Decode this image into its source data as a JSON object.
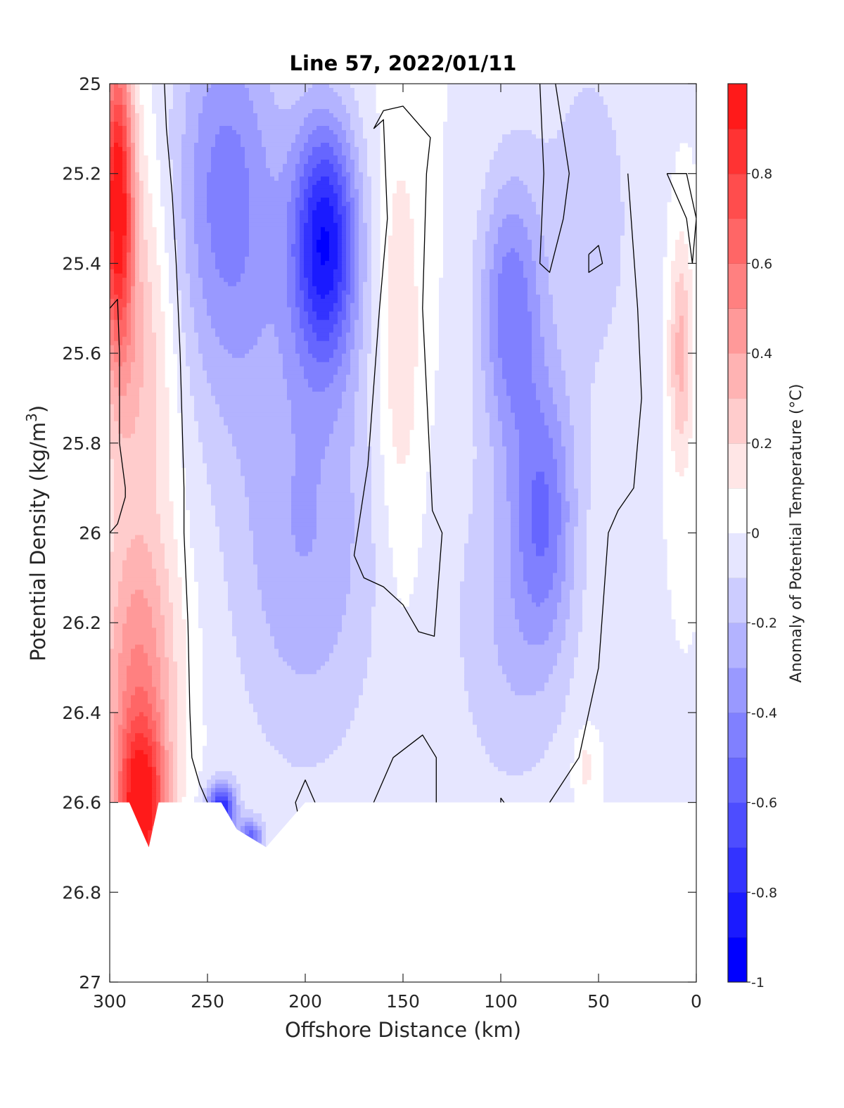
{
  "chart_data": {
    "type": "contourf",
    "title": "Line 57, 2022/01/11",
    "xlabel": "Offshore Distance (km)",
    "ylabel_main": "Potential Density (kg/m",
    "ylabel_sup": "3",
    "ylabel_close": ")",
    "xlim": [
      300,
      0
    ],
    "ylim": [
      25,
      27
    ],
    "y_reversed": true,
    "xticks": [
      300,
      250,
      200,
      150,
      100,
      50,
      0
    ],
    "xtick_labels": [
      "300",
      "250",
      "200",
      "150",
      "100",
      "50",
      "0"
    ],
    "yticks": [
      25,
      25.2,
      25.4,
      25.6,
      25.8,
      26,
      26.2,
      26.4,
      26.6,
      26.8,
      27
    ],
    "ytick_labels": [
      "25",
      "25.2",
      "25.4",
      "25.6",
      "25.8",
      "26",
      "26.2",
      "26.4",
      "26.6",
      "26.8",
      "27"
    ],
    "colorbar": {
      "label": "Anomaly of Potential Temperature (°C)",
      "range": [
        -1,
        1
      ],
      "ticks": [
        -1,
        -0.8,
        -0.6,
        -0.4,
        -0.2,
        0,
        0.2,
        0.4,
        0.6,
        0.8
      ],
      "tick_labels": [
        "-1",
        "-0.8",
        "-0.6",
        "-0.4",
        "-0.2",
        "0",
        "0.2",
        "0.4",
        "0.6",
        "0.8"
      ],
      "bins": [
        {
          "lo": -1.0,
          "hi": -0.9,
          "color": "#0000ff"
        },
        {
          "lo": -0.9,
          "hi": -0.8,
          "color": "#1a1aff"
        },
        {
          "lo": -0.8,
          "hi": -0.7,
          "color": "#3333ff"
        },
        {
          "lo": -0.7,
          "hi": -0.6,
          "color": "#4d4dff"
        },
        {
          "lo": -0.6,
          "hi": -0.5,
          "color": "#6666ff"
        },
        {
          "lo": -0.5,
          "hi": -0.4,
          "color": "#8080ff"
        },
        {
          "lo": -0.4,
          "hi": -0.3,
          "color": "#9999ff"
        },
        {
          "lo": -0.3,
          "hi": -0.2,
          "color": "#b3b3ff"
        },
        {
          "lo": -0.2,
          "hi": -0.1,
          "color": "#ccccff"
        },
        {
          "lo": -0.1,
          "hi": 0.0,
          "color": "#e6e6ff"
        },
        {
          "lo": 0.0,
          "hi": 0.1,
          "color": "#ffffff"
        },
        {
          "lo": 0.1,
          "hi": 0.2,
          "color": "#ffe6e6"
        },
        {
          "lo": 0.2,
          "hi": 0.3,
          "color": "#ffcccc"
        },
        {
          "lo": 0.3,
          "hi": 0.4,
          "color": "#ffb3b3"
        },
        {
          "lo": 0.4,
          "hi": 0.5,
          "color": "#ff9999"
        },
        {
          "lo": 0.5,
          "hi": 0.6,
          "color": "#ff8080"
        },
        {
          "lo": 0.6,
          "hi": 0.7,
          "color": "#ff6666"
        },
        {
          "lo": 0.7,
          "hi": 0.8,
          "color": "#ff4d4d"
        },
        {
          "lo": 0.8,
          "hi": 0.9,
          "color": "#ff3333"
        },
        {
          "lo": 0.9,
          "hi": 1.0,
          "color": "#ff1a1a"
        }
      ]
    },
    "anomaly_features": [
      {
        "name": "nearshore-west-warm-upper",
        "x": 296,
        "y": 25.25,
        "sx": 8,
        "sy": 0.35,
        "amp": 0.95
      },
      {
        "name": "west-warm-tongue",
        "x": 285,
        "y": 25.6,
        "sx": 18,
        "sy": 0.45,
        "amp": 0.3
      },
      {
        "name": "west-warm-deep",
        "x": 284,
        "y": 26.62,
        "sx": 13,
        "sy": 0.2,
        "amp": 0.95
      },
      {
        "name": "west-warm-mid",
        "x": 285,
        "y": 26.3,
        "sx": 20,
        "sy": 0.3,
        "amp": 0.45
      },
      {
        "name": "cold-core-upper-left",
        "x": 240,
        "y": 25.25,
        "sx": 28,
        "sy": 0.45,
        "amp": -0.45
      },
      {
        "name": "cold-core-main",
        "x": 190,
        "y": 25.35,
        "sx": 17,
        "sy": 0.28,
        "amp": -0.85
      },
      {
        "name": "cold-tongue-mid",
        "x": 200,
        "y": 26.0,
        "sx": 38,
        "sy": 0.5,
        "amp": -0.3
      },
      {
        "name": "cold-deep-spot",
        "x": 243,
        "y": 26.62,
        "sx": 7,
        "sy": 0.06,
        "amp": -0.85
      },
      {
        "name": "cold-deep-spot-2",
        "x": 228,
        "y": 26.68,
        "sx": 6,
        "sy": 0.04,
        "amp": -0.55
      },
      {
        "name": "warm-central-lens",
        "x": 152,
        "y": 25.6,
        "sx": 12,
        "sy": 0.5,
        "amp": 0.2
      },
      {
        "name": "cold-east-core",
        "x": 95,
        "y": 25.5,
        "sx": 16,
        "sy": 0.3,
        "amp": -0.45
      },
      {
        "name": "cold-east-deep",
        "x": 78,
        "y": 25.95,
        "sx": 16,
        "sy": 0.3,
        "amp": -0.4
      },
      {
        "name": "cold-east-mid",
        "x": 95,
        "y": 26.2,
        "sx": 30,
        "sy": 0.4,
        "amp": -0.2
      },
      {
        "name": "cold-east-upper",
        "x": 55,
        "y": 25.3,
        "sx": 30,
        "sy": 0.5,
        "amp": -0.14
      },
      {
        "name": "warm-nearshore-east",
        "x": 8,
        "y": 25.6,
        "sx": 6,
        "sy": 0.25,
        "amp": 0.35
      },
      {
        "name": "warm-spot-deep-east",
        "x": 57,
        "y": 26.52,
        "sx": 6,
        "sy": 0.08,
        "amp": 0.15
      }
    ],
    "zero_contours": [
      {
        "name": "zero-contour-west",
        "points": [
          [
            272,
            25.0
          ],
          [
            271,
            25.1
          ],
          [
            268,
            25.25
          ],
          [
            266,
            25.4
          ],
          [
            264,
            25.6
          ],
          [
            262,
            25.9
          ],
          [
            262,
            26.0
          ],
          [
            260,
            26.2
          ],
          [
            259,
            26.4
          ],
          [
            258,
            26.5
          ],
          [
            254,
            26.56
          ],
          [
            250,
            26.6
          ]
        ]
      },
      {
        "name": "zero-contour-west-2",
        "points": [
          [
            300,
            25.5
          ],
          [
            296,
            25.48
          ],
          [
            295,
            25.6
          ],
          [
            295,
            25.8
          ],
          [
            292,
            25.9
          ],
          [
            292,
            25.92
          ],
          [
            296,
            25.98
          ],
          [
            300,
            26.0
          ]
        ]
      },
      {
        "name": "zero-contour-central",
        "points": [
          [
            165,
            25.1
          ],
          [
            160,
            25.08
          ],
          [
            158,
            25.3
          ],
          [
            162,
            25.5
          ],
          [
            168,
            25.85
          ],
          [
            175,
            26.05
          ],
          [
            170,
            26.1
          ],
          [
            160,
            26.12
          ],
          [
            150,
            26.16
          ],
          [
            142,
            26.22
          ],
          [
            134,
            26.23
          ],
          [
            130,
            26.0
          ],
          [
            135,
            25.95
          ],
          [
            140,
            25.5
          ],
          [
            138,
            25.2
          ],
          [
            136,
            25.12
          ],
          [
            150,
            25.05
          ],
          [
            160,
            25.06
          ],
          [
            165,
            25.1
          ]
        ]
      },
      {
        "name": "zero-contour-east",
        "points": [
          [
            80,
            25.0
          ],
          [
            78,
            25.2
          ],
          [
            80,
            25.4
          ],
          [
            75,
            25.42
          ],
          [
            68,
            25.3
          ],
          [
            65,
            25.2
          ],
          [
            72,
            25.0
          ]
        ]
      },
      {
        "name": "zero-contour-nearshore",
        "points": [
          [
            15,
            25.2
          ],
          [
            10,
            25.25
          ],
          [
            5,
            25.3
          ],
          [
            2,
            25.4
          ],
          [
            0,
            25.3
          ],
          [
            5,
            25.2
          ],
          [
            15,
            25.2
          ]
        ]
      },
      {
        "name": "zero-contour-east-2",
        "points": [
          [
            35,
            25.2
          ],
          [
            30,
            25.5
          ],
          [
            28,
            25.7
          ],
          [
            32,
            25.9
          ],
          [
            40,
            25.95
          ],
          [
            45,
            26.0
          ],
          [
            50,
            26.3
          ],
          [
            60,
            26.5
          ],
          [
            75,
            26.6
          ]
        ]
      },
      {
        "name": "zero-contour-deep-mid",
        "points": [
          [
            195,
            26.6
          ],
          [
            200,
            26.55
          ],
          [
            205,
            26.6
          ],
          [
            200,
            26.7
          ],
          [
            195,
            26.75
          ]
        ]
      },
      {
        "name": "zero-contour-deep-mid-2",
        "points": [
          [
            165,
            26.6
          ],
          [
            155,
            26.5
          ],
          [
            140,
            26.45
          ],
          [
            133,
            26.5
          ],
          [
            133,
            26.7
          ]
        ]
      },
      {
        "name": "zero-contour-deep-loop",
        "points": [
          [
            100,
            26.59
          ],
          [
            90,
            26.65
          ],
          [
            85,
            26.72
          ],
          [
            90,
            26.76
          ],
          [
            100,
            26.7
          ],
          [
            100,
            26.59
          ]
        ]
      },
      {
        "name": "zero-contour-east-loop",
        "points": [
          [
            55,
            25.38
          ],
          [
            50,
            25.36
          ],
          [
            48,
            25.4
          ],
          [
            55,
            25.42
          ],
          [
            55,
            25.38
          ]
        ]
      }
    ],
    "mask_regions": [
      {
        "name": "no-data-deep",
        "points": [
          [
            300,
            26.7
          ],
          [
            300,
            27.0
          ],
          [
            0,
            27.0
          ],
          [
            0,
            26.6
          ],
          [
            130,
            26.6
          ],
          [
            200,
            26.6
          ],
          [
            220,
            26.7
          ],
          [
            235,
            26.66
          ],
          [
            243,
            26.6
          ],
          [
            262,
            26.6
          ],
          [
            275,
            26.6
          ],
          [
            280,
            26.7
          ],
          [
            290,
            26.6
          ],
          [
            300,
            26.6
          ]
        ]
      }
    ]
  }
}
